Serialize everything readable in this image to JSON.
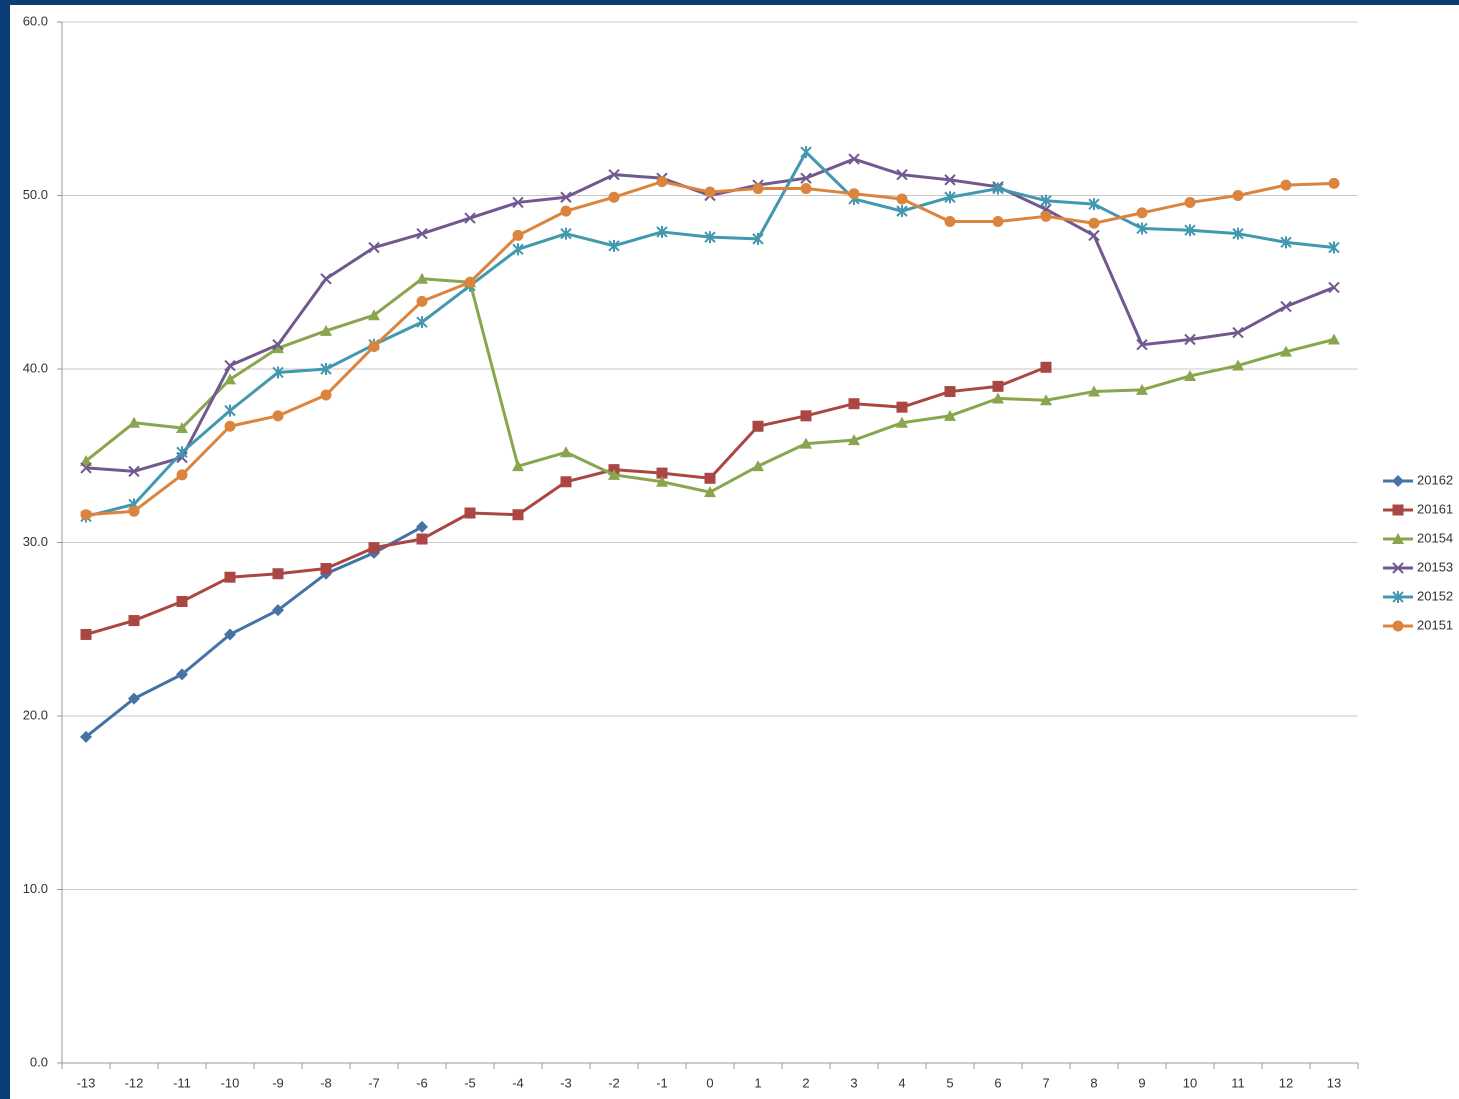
{
  "chart_data": {
    "type": "line",
    "categories": [
      "-13",
      "-12",
      "-11",
      "-10",
      "-9",
      "-8",
      "-7",
      "-6",
      "-5",
      "-4",
      "-3",
      "-2",
      "-1",
      "0",
      "1",
      "2",
      "3",
      "4",
      "5",
      "6",
      "7",
      "8",
      "9",
      "10",
      "11",
      "12",
      "13"
    ],
    "ylim": [
      0,
      60
    ],
    "yticks": [
      {
        "value": 0,
        "label": "0.0"
      },
      {
        "value": 10,
        "label": "10.0"
      },
      {
        "value": 20,
        "label": "20.0"
      },
      {
        "value": 30,
        "label": "30.0"
      },
      {
        "value": 40,
        "label": "40.0"
      },
      {
        "value": 50,
        "label": "50.0"
      },
      {
        "value": 60,
        "label": "60.0"
      }
    ],
    "grid": true,
    "legend": "right",
    "series": [
      {
        "name": "20162",
        "color": "#4572a7",
        "marker": "diamond",
        "values": [
          18.8,
          21.0,
          22.4,
          24.7,
          26.1,
          28.2,
          29.4,
          30.9,
          null,
          null,
          null,
          null,
          null,
          null,
          null,
          null,
          null,
          null,
          null,
          null,
          null,
          null,
          null,
          null,
          null,
          null,
          null
        ]
      },
      {
        "name": "20161",
        "color": "#aa4643",
        "marker": "square",
        "values": [
          24.7,
          25.5,
          26.6,
          28.0,
          28.2,
          28.5,
          29.7,
          30.2,
          31.7,
          31.6,
          33.5,
          34.2,
          34.0,
          33.7,
          36.7,
          37.3,
          38.0,
          37.8,
          38.7,
          39.0,
          40.1,
          null,
          null,
          null,
          null,
          null,
          null
        ]
      },
      {
        "name": "20154",
        "color": "#89a54e",
        "marker": "triangle",
        "values": [
          34.7,
          36.9,
          36.6,
          39.4,
          41.2,
          42.2,
          43.1,
          45.2,
          45.0,
          34.4,
          35.2,
          33.9,
          33.5,
          32.9,
          34.4,
          35.7,
          35.9,
          36.9,
          37.3,
          38.3,
          38.2,
          38.7,
          38.8,
          39.6,
          40.2,
          41.0,
          41.7
        ]
      },
      {
        "name": "20153",
        "color": "#71588f",
        "marker": "x",
        "values": [
          34.3,
          34.1,
          34.9,
          40.2,
          41.4,
          45.2,
          47.0,
          47.8,
          48.7,
          49.6,
          49.9,
          51.2,
          51.0,
          50.0,
          50.6,
          51.0,
          52.1,
          51.2,
          50.9,
          50.5,
          49.2,
          47.7,
          41.4,
          41.7,
          42.1,
          43.6,
          44.7
        ]
      },
      {
        "name": "20152",
        "color": "#4198af",
        "marker": "star",
        "values": [
          31.5,
          32.2,
          35.2,
          37.6,
          39.8,
          40.0,
          41.4,
          42.7,
          44.8,
          46.9,
          47.8,
          47.1,
          47.9,
          47.6,
          47.5,
          52.5,
          49.8,
          49.1,
          49.9,
          50.4,
          49.7,
          49.5,
          48.1,
          48.0,
          47.8,
          47.3,
          47.0
        ]
      },
      {
        "name": "20151",
        "color": "#db843d",
        "marker": "circle",
        "values": [
          31.6,
          31.8,
          33.9,
          36.7,
          37.3,
          38.5,
          41.3,
          43.9,
          45.0,
          47.7,
          49.1,
          49.9,
          50.8,
          50.2,
          50.4,
          50.4,
          50.1,
          49.8,
          48.5,
          48.5,
          48.8,
          48.4,
          49.0,
          49.6,
          50.0,
          50.6,
          50.7
        ]
      }
    ]
  }
}
